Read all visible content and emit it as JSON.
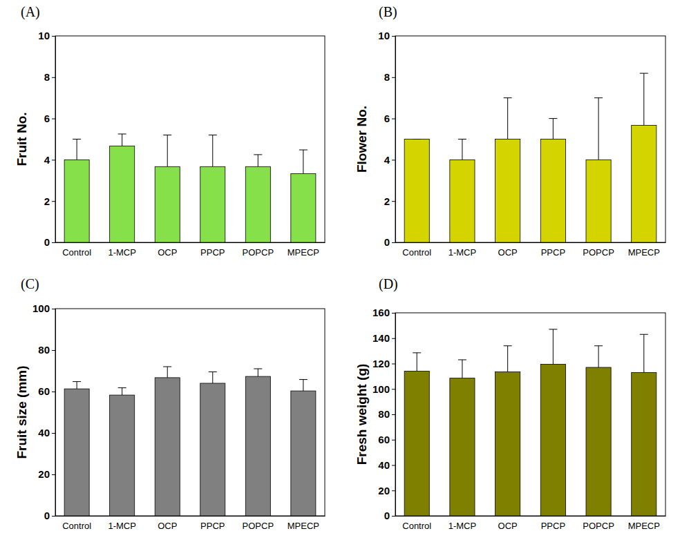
{
  "chart_data": [
    {
      "type": "bar",
      "title": "(A)",
      "y_label": "Fruit No.",
      "categories": [
        "Control",
        "1-MCP",
        "OCP",
        "PPCP",
        "POPCP",
        "MPECP"
      ],
      "values": [
        4,
        4.67,
        3.67,
        3.67,
        3.67,
        3.33
      ],
      "errors": [
        1,
        0.58,
        1.53,
        1.53,
        0.58,
        1.15
      ],
      "color": "#86e04a",
      "ylim": [
        0,
        10
      ],
      "yticks": [
        0,
        2,
        4,
        6,
        8,
        10
      ]
    },
    {
      "type": "bar",
      "title": "(B)",
      "y_label": "Flower No.",
      "categories": [
        "Control",
        "1-MCP",
        "OCP",
        "PPCP",
        "POPCP",
        "MPECP"
      ],
      "values": [
        5,
        4,
        5,
        5,
        4,
        5.67
      ],
      "errors": [
        0,
        1,
        2,
        1,
        3,
        2.52
      ],
      "color": "#d4d400",
      "ylim": [
        0,
        10
      ],
      "yticks": [
        0,
        2,
        4,
        6,
        8,
        10
      ]
    },
    {
      "type": "bar",
      "title": "(C)",
      "y_label": "Fruit size (mm)",
      "categories": [
        "Control",
        "1-MCP",
        "OCP",
        "PPCP",
        "POPCP",
        "MPECP"
      ],
      "values": [
        61.3,
        58.3,
        66.7,
        64,
        67.3,
        60.3
      ],
      "errors": [
        3.5,
        3.5,
        5.3,
        5.5,
        3.7,
        5.5
      ],
      "color": "#808080",
      "ylim": [
        0,
        100
      ],
      "yticks": [
        0,
        20,
        40,
        60,
        80,
        100
      ]
    },
    {
      "type": "bar",
      "title": "(D)",
      "y_label": "Fresh weight (g)",
      "categories": [
        "Control",
        "1-MCP",
        "OCP",
        "PPCP",
        "POPCP",
        "MPECP"
      ],
      "values": [
        114,
        108.5,
        113.5,
        119.5,
        117,
        113
      ],
      "errors": [
        14.5,
        14.5,
        20.5,
        27.5,
        17,
        30
      ],
      "color": "#808000",
      "ylim": [
        0,
        160
      ],
      "yticks": [
        0,
        20,
        40,
        60,
        80,
        100,
        120,
        140,
        160
      ]
    }
  ]
}
